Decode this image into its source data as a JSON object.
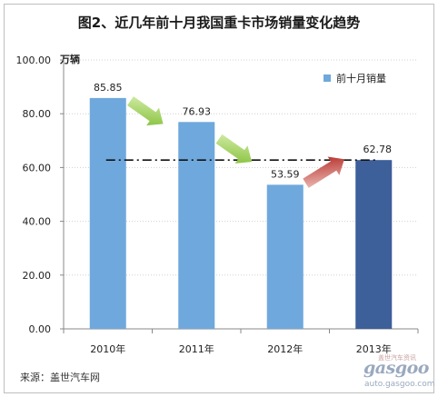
{
  "title": "图2、近几年前十月我国重卡市场销量变化趋势",
  "unit_label": "万辆",
  "source": "来源：盖世汽车网",
  "watermark": {
    "logo": "gasgoo",
    "cn_text": "盖世汽车资讯",
    "url": "auto.gasgoo.com"
  },
  "chart_data": {
    "type": "bar",
    "title": "图2、近几年前十月我国重卡市场销量变化趋势",
    "categories": [
      "2010年",
      "2011年",
      "2012年",
      "2013年"
    ],
    "series": [
      {
        "name": "前十月销量",
        "values": [
          85.85,
          76.93,
          53.59,
          62.78
        ]
      }
    ],
    "value_labels": [
      "85.85",
      "76.93",
      "53.59",
      "62.78"
    ],
    "ylabel": "万辆",
    "ylim": [
      0,
      100
    ],
    "yticks": [
      "0.00",
      "20.00",
      "40.00",
      "60.00",
      "80.00",
      "100.00"
    ],
    "ytick_values": [
      0,
      20,
      40,
      60,
      80,
      100
    ],
    "grid": true,
    "legend": "top-right",
    "reference_line_value": 62.78,
    "colors": {
      "bar": "#6fa8dc",
      "bar_highlight": "#3d5f9a",
      "grid": "#d0d0d0",
      "arrow_down": "#8dc63f",
      "arrow_up": "#c0302a"
    },
    "annotations": [
      {
        "type": "arrow",
        "direction": "down",
        "from": "2010年",
        "to": "2011年"
      },
      {
        "type": "arrow",
        "direction": "down",
        "from": "2011年",
        "to": "2012年"
      },
      {
        "type": "arrow",
        "direction": "up",
        "from": "2012年",
        "to": "2013年"
      }
    ]
  }
}
